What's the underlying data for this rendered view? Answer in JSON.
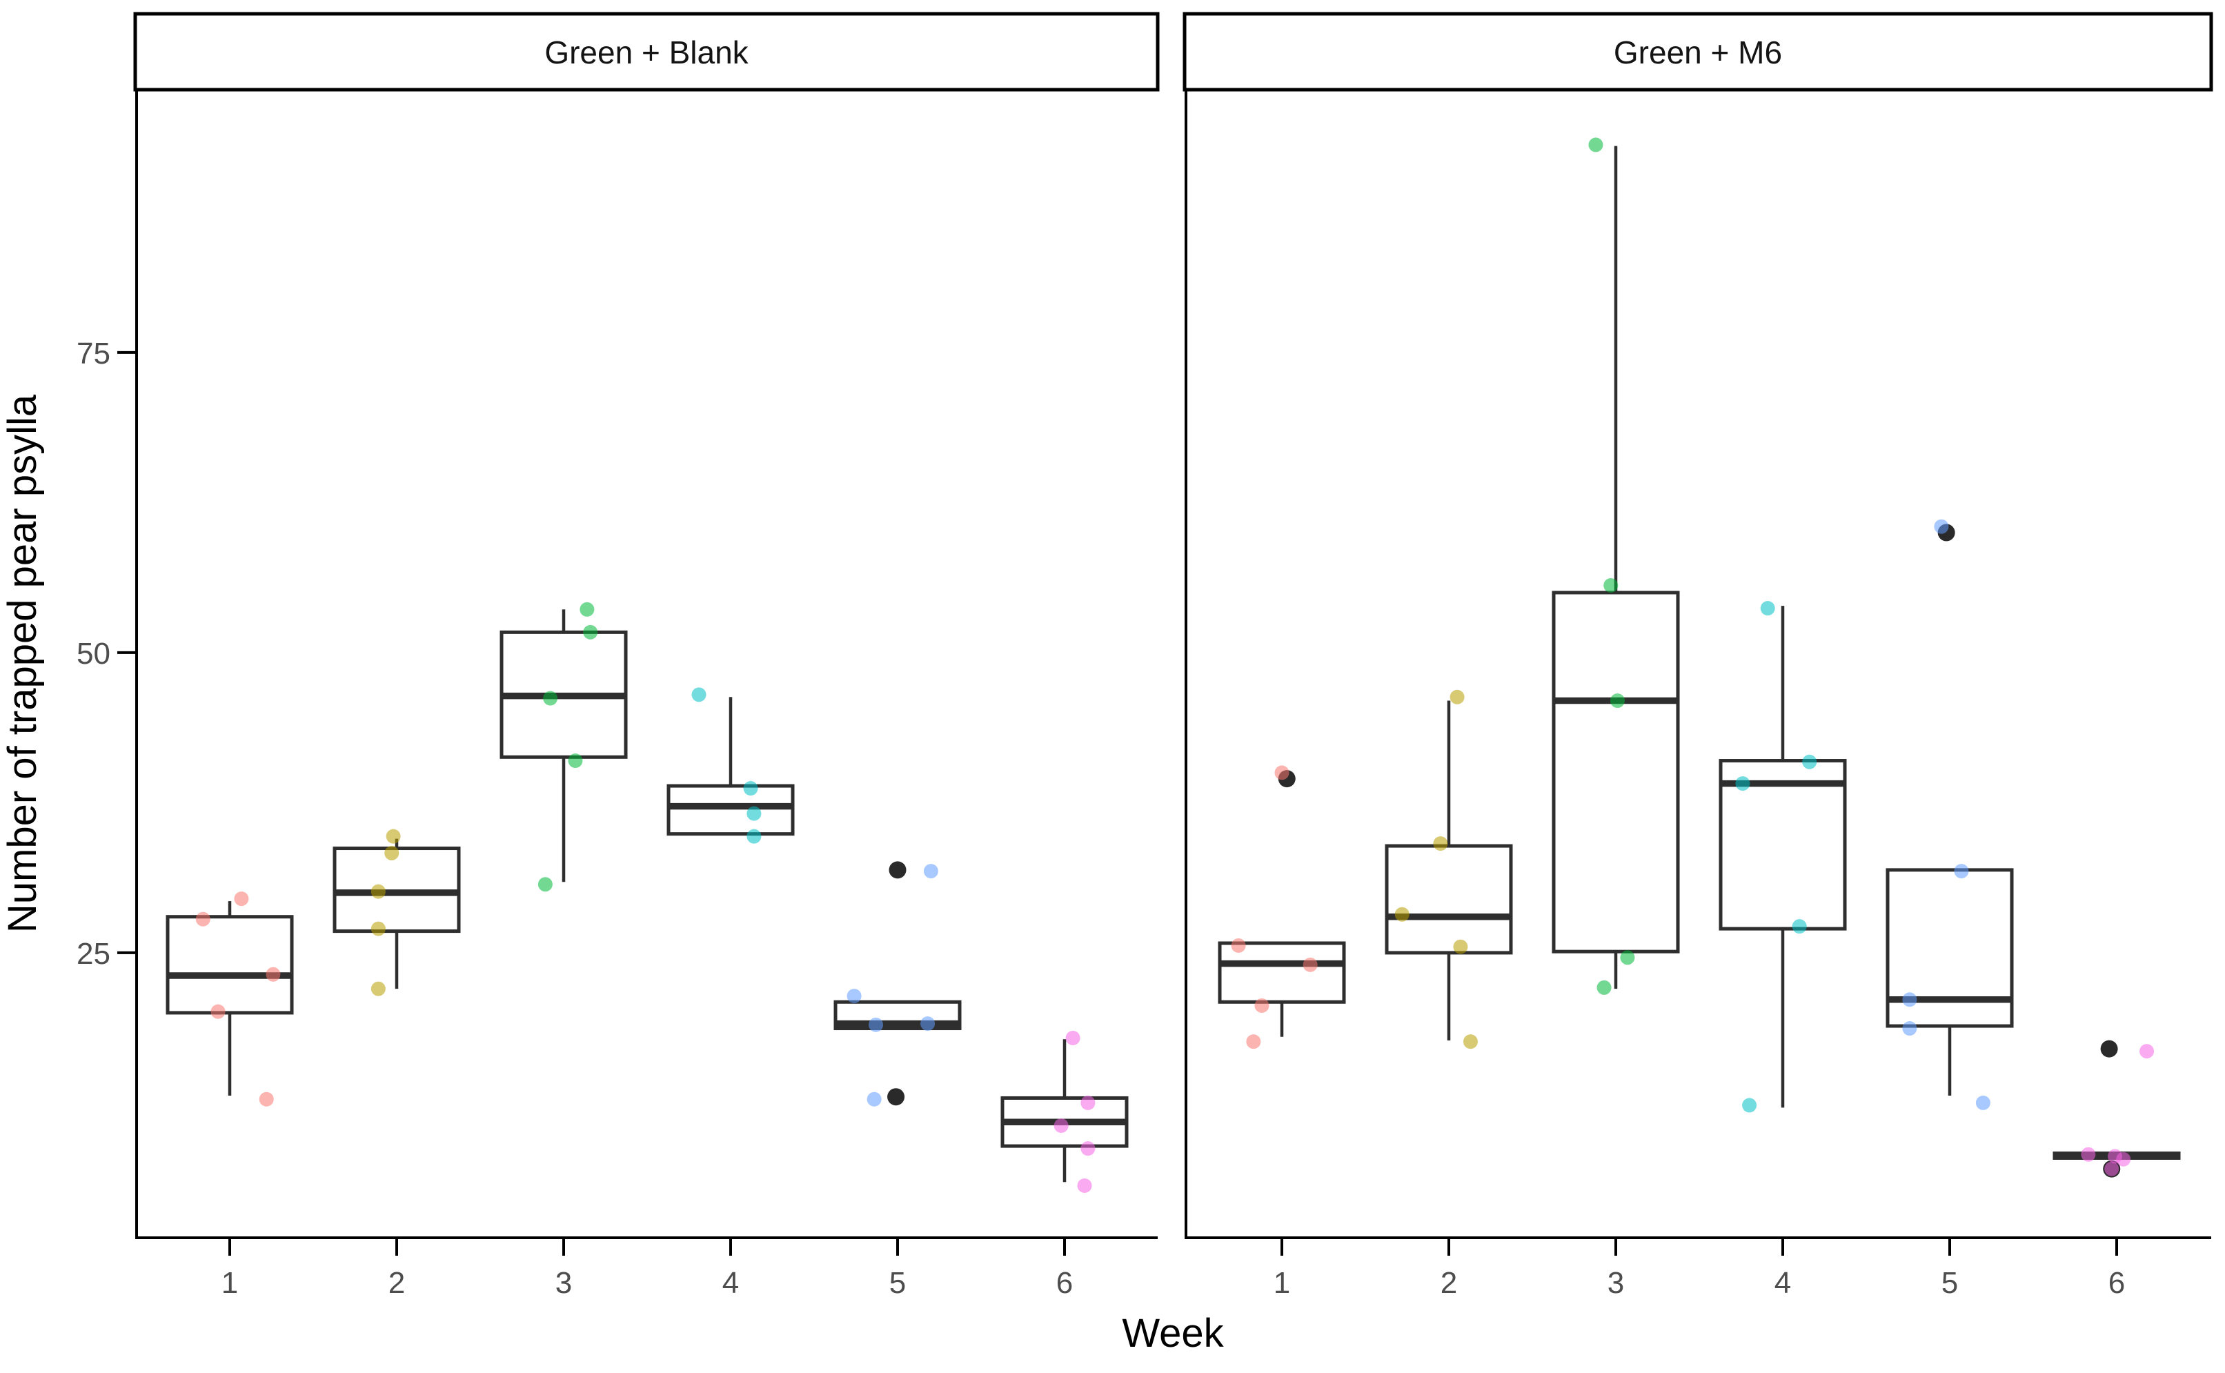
{
  "chart_data": {
    "type": "boxplot",
    "title": "",
    "xlabel": "Week",
    "ylabel": "Number of trapped pear psylla",
    "categories": [
      "1",
      "2",
      "3",
      "4",
      "5",
      "6"
    ],
    "y_ticks": [
      25,
      50,
      75
    ],
    "ylim": [
      1.3,
      96.9
    ],
    "grid": false,
    "legend": "none",
    "facet_titles_position": "top",
    "point_note": "points are [value, x_jitter_fraction_of_week_spacing]",
    "facets": [
      {
        "label": "Green + Blank",
        "weeks": [
          {
            "week": "1",
            "color": "#F8766D",
            "q1": 20,
            "median": 23.1,
            "q3": 28,
            "whisker_low": 13.1,
            "whisker_high": 29.3,
            "points": [
              [
                29.5,
                0.07
              ],
              [
                27.8,
                -0.16
              ],
              [
                23.2,
                0.26
              ],
              [
                20.1,
                -0.07
              ],
              [
                12.8,
                0.22
              ]
            ],
            "outliers": []
          },
          {
            "week": "2",
            "color": "#B79F00",
            "q1": 26.8,
            "median": 30,
            "q3": 33.7,
            "whisker_low": 22,
            "whisker_high": 34.5,
            "points": [
              [
                34.7,
                -0.02
              ],
              [
                33.3,
                -0.03
              ],
              [
                30.1,
                -0.11
              ],
              [
                27,
                -0.11
              ],
              [
                22,
                -0.11
              ]
            ],
            "outliers": []
          },
          {
            "week": "3",
            "color": "#00BA38",
            "q1": 41.3,
            "median": 46.4,
            "q3": 51.7,
            "whisker_low": 30.9,
            "whisker_high": 53.6,
            "points": [
              [
                53.6,
                0.14
              ],
              [
                51.7,
                0.16
              ],
              [
                46.2,
                -0.08
              ],
              [
                41,
                0.07
              ],
              [
                30.7,
                -0.11
              ]
            ],
            "outliers": []
          },
          {
            "week": "4",
            "color": "#00BFC4",
            "q1": 34.9,
            "median": 37.2,
            "q3": 38.9,
            "whisker_low": 34.9,
            "whisker_high": 46.3,
            "points": [
              [
                46.5,
                -0.19
              ],
              [
                38.7,
                0.12
              ],
              [
                36.6,
                0.14
              ],
              [
                34.7,
                0.14
              ]
            ],
            "outliers": []
          },
          {
            "week": "5",
            "color": "#619CFF",
            "q1": 18.7,
            "median": 19.1,
            "q3": 20.9,
            "whisker_low": 18.7,
            "whisker_high": 20.9,
            "points": [
              [
                31.8,
                0.2
              ],
              [
                21.4,
                -0.26
              ],
              [
                19,
                -0.13
              ],
              [
                19.1,
                0.18
              ],
              [
                12.8,
                -0.14
              ]
            ],
            "outliers": [
              [
                31.9,
                0.0
              ],
              [
                13.0,
                -0.01
              ]
            ]
          },
          {
            "week": "6",
            "color": "#F564E3",
            "q1": 8.9,
            "median": 10.9,
            "q3": 12.9,
            "whisker_low": 5.9,
            "whisker_high": 17.8,
            "points": [
              [
                17.9,
                0.05
              ],
              [
                12.5,
                0.14
              ],
              [
                10.6,
                -0.02
              ],
              [
                8.7,
                0.14
              ],
              [
                5.6,
                0.12
              ]
            ],
            "outliers": []
          }
        ]
      },
      {
        "label": "Green + M6",
        "weeks": [
          {
            "week": "1",
            "color": "#F8766D",
            "q1": 20.9,
            "median": 24.1,
            "q3": 25.8,
            "whisker_low": 18,
            "whisker_high": 25.8,
            "points": [
              [
                40,
                0.0
              ],
              [
                25.6,
                -0.26
              ],
              [
                24,
                0.17
              ],
              [
                20.6,
                -0.12
              ],
              [
                17.6,
                -0.17
              ]
            ],
            "outliers": [
              [
                39.5,
                0.03
              ]
            ]
          },
          {
            "week": "2",
            "color": "#B79F00",
            "q1": 25,
            "median": 28,
            "q3": 33.9,
            "whisker_low": 17.7,
            "whisker_high": 46,
            "points": [
              [
                46.3,
                0.05
              ],
              [
                34.1,
                -0.05
              ],
              [
                28.2,
                -0.28
              ],
              [
                25.5,
                0.07
              ],
              [
                17.6,
                0.13
              ]
            ],
            "outliers": []
          },
          {
            "week": "3",
            "color": "#00BA38",
            "q1": 25.1,
            "median": 46,
            "q3": 55,
            "whisker_low": 22,
            "whisker_high": 92.2,
            "points": [
              [
                92.3,
                -0.12
              ],
              [
                55.6,
                -0.03
              ],
              [
                46,
                0.01
              ],
              [
                24.6,
                0.07
              ],
              [
                22.1,
                -0.07
              ]
            ],
            "outliers": []
          },
          {
            "week": "4",
            "color": "#00BFC4",
            "q1": 27,
            "median": 39.1,
            "q3": 41,
            "whisker_low": 12.1,
            "whisker_high": 53.9,
            "points": [
              [
                53.7,
                -0.09
              ],
              [
                40.9,
                0.16
              ],
              [
                39.1,
                -0.24
              ],
              [
                27.2,
                0.1
              ],
              [
                12.3,
                -0.2
              ]
            ],
            "outliers": []
          },
          {
            "week": "5",
            "color": "#619CFF",
            "q1": 18.9,
            "median": 21.1,
            "q3": 31.9,
            "whisker_low": 13.1,
            "whisker_high": 31.9,
            "points": [
              [
                60.5,
                -0.05
              ],
              [
                31.8,
                0.07
              ],
              [
                21.1,
                -0.24
              ],
              [
                18.7,
                -0.24
              ],
              [
                12.5,
                0.2
              ]
            ],
            "outliers": [
              [
                60,
                -0.02
              ]
            ]
          },
          {
            "week": "6",
            "color": "#F564E3",
            "q1": 7.9,
            "median": 8.1,
            "q3": 8.3,
            "whisker_low": 7.9,
            "whisker_high": 8.3,
            "points": [
              [
                16.8,
                0.18
              ],
              [
                8.2,
                -0.17
              ],
              [
                8.05,
                -0.01
              ],
              [
                7.8,
                0.04
              ],
              [
                7.0,
                -0.03
              ]
            ],
            "outliers": [
              [
                17,
                -0.045
              ],
              [
                7.0,
                -0.03
              ]
            ]
          }
        ]
      }
    ]
  }
}
